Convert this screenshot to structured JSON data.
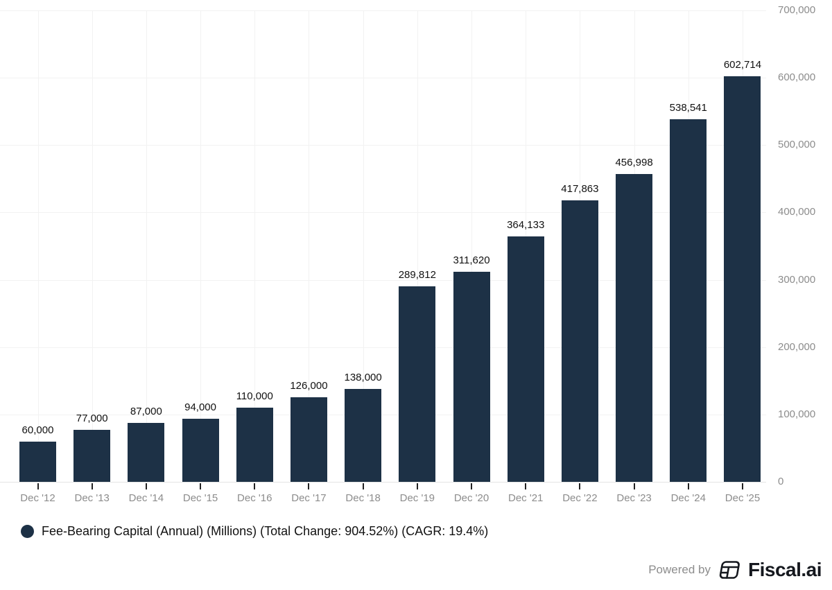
{
  "chart_data": {
    "type": "bar",
    "title": "",
    "series_name": "Fee-Bearing Capital (Annual) (Millions)",
    "categories": [
      "Dec '12",
      "Dec '13",
      "Dec '14",
      "Dec '15",
      "Dec '16",
      "Dec '17",
      "Dec '18",
      "Dec '19",
      "Dec '20",
      "Dec '21",
      "Dec '22",
      "Dec '23",
      "Dec '24",
      "Dec '25"
    ],
    "values": [
      60000,
      77000,
      87000,
      94000,
      110000,
      126000,
      138000,
      289812,
      311620,
      364133,
      417863,
      456998,
      538541,
      602714
    ],
    "xlabel": "",
    "ylabel": "",
    "ylim": [
      0,
      700000
    ],
    "yticks": [
      0,
      100000,
      200000,
      300000,
      400000,
      500000,
      600000,
      700000
    ],
    "grid": true,
    "legend_position": "bottom-left",
    "bar_color": "#1d3146",
    "value_label_color": "#111111",
    "axis_label_color": "#8c8c8c",
    "gridline_color": "#f2f2f2",
    "axis_line_color": "#e4e4e4",
    "tick_color": "#222222"
  },
  "legend": {
    "label": "Fee-Bearing Capital (Annual) (Millions) (Total Change: 904.52%) (CAGR: 19.4%)",
    "marker_color": "#1d3146",
    "total_change": "904.52%",
    "cagr": "19.4%"
  },
  "footer": {
    "powered_by_label": "Powered by",
    "brand_name": "Fiscal.ai",
    "brand_icon": "fiscal-ai-table-icon",
    "brand_color": "#15181e"
  }
}
